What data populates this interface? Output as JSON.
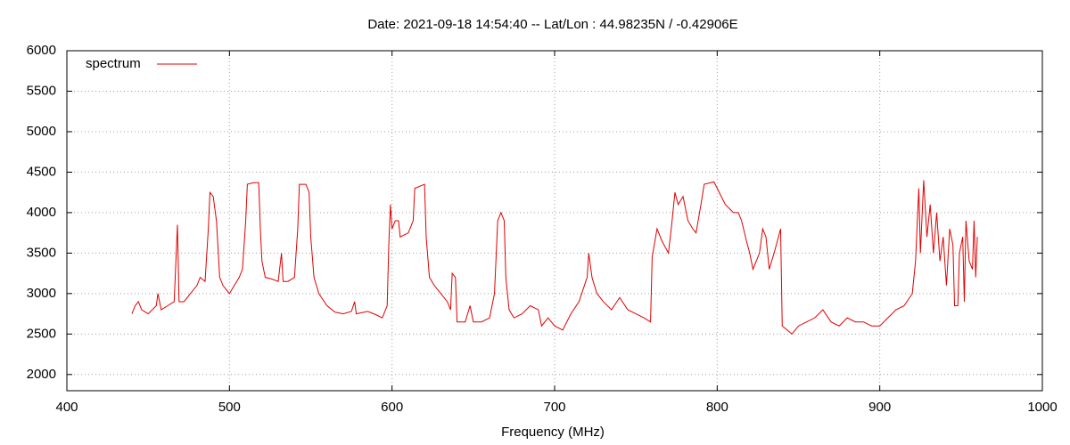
{
  "chart_data": {
    "type": "line",
    "title": "Date: 2021-09-18 14:54:40  --  Lat/Lon : 44.98235N / -0.42906E",
    "x_label": "Frequency (MHz)",
    "xlim": [
      400,
      1000
    ],
    "xticks": [
      400,
      500,
      600,
      700,
      800,
      900,
      1000
    ],
    "ylim": [
      1800,
      6000
    ],
    "yticks": [
      2000,
      2500,
      3000,
      3500,
      4000,
      4500,
      5000,
      5500,
      6000
    ],
    "grid": true,
    "legend": "upper-left",
    "x": [
      440,
      442,
      444,
      446,
      450,
      455,
      456,
      458,
      462,
      466,
      468,
      469,
      472,
      476,
      480,
      482,
      485,
      487,
      488,
      490,
      492,
      494,
      496,
      498,
      500,
      503,
      506,
      508,
      510,
      511,
      515,
      518,
      519,
      520,
      522,
      526,
      530,
      532,
      533,
      536,
      540,
      542,
      543,
      547,
      549,
      550,
      552,
      555,
      560,
      565,
      570,
      575,
      577,
      578,
      585,
      590,
      594,
      597,
      598,
      599,
      600,
      602,
      604,
      605,
      610,
      613,
      614,
      620,
      621,
      623,
      626,
      630,
      634,
      636,
      637,
      639,
      640,
      645,
      648,
      650,
      655,
      660,
      663,
      665,
      667,
      669,
      670,
      672,
      675,
      680,
      685,
      690,
      692,
      696,
      700,
      705,
      710,
      715,
      720,
      721,
      723,
      726,
      730,
      735,
      740,
      745,
      750,
      755,
      759,
      760,
      763,
      766,
      770,
      772,
      774,
      776,
      779,
      782,
      785,
      787,
      790,
      792,
      798,
      800,
      805,
      810,
      813,
      815,
      818,
      820,
      822,
      826,
      828,
      830,
      832,
      835,
      839,
      840,
      843,
      846,
      850,
      855,
      860,
      865,
      870,
      875,
      880,
      885,
      890,
      895,
      900,
      905,
      910,
      915,
      920,
      922,
      924,
      925,
      927,
      929,
      931,
      933,
      935,
      937,
      939,
      941,
      943,
      945,
      946,
      948,
      949,
      951,
      952,
      953,
      955,
      957,
      958,
      959,
      960
    ],
    "series": [
      {
        "name": "spectrum",
        "color": "#e00000",
        "values": [
          2750,
          2850,
          2900,
          2800,
          2750,
          2850,
          3000,
          2800,
          2850,
          2900,
          3850,
          2900,
          2900,
          3000,
          3100,
          3200,
          3150,
          3800,
          4250,
          4200,
          3900,
          3200,
          3100,
          3050,
          3000,
          3100,
          3200,
          3300,
          3900,
          4350,
          4370,
          4370,
          3800,
          3400,
          3200,
          3180,
          3150,
          3500,
          3150,
          3150,
          3200,
          3800,
          4350,
          4350,
          4250,
          3700,
          3200,
          3000,
          2850,
          2770,
          2750,
          2780,
          2900,
          2750,
          2780,
          2740,
          2700,
          2850,
          3600,
          4100,
          3800,
          3900,
          3900,
          3700,
          3750,
          3900,
          4300,
          4350,
          3700,
          3200,
          3100,
          3000,
          2900,
          2800,
          3250,
          3200,
          2650,
          2650,
          2850,
          2650,
          2650,
          2700,
          3000,
          3900,
          4000,
          3900,
          3200,
          2800,
          2700,
          2750,
          2850,
          2800,
          2600,
          2700,
          2600,
          2550,
          2750,
          2900,
          3200,
          3500,
          3200,
          3000,
          2900,
          2800,
          2950,
          2800,
          2750,
          2700,
          2650,
          3450,
          3800,
          3650,
          3500,
          3850,
          4250,
          4100,
          4200,
          3900,
          3800,
          3750,
          4100,
          4350,
          4380,
          4300,
          4100,
          4000,
          4000,
          3900,
          3650,
          3500,
          3300,
          3500,
          3800,
          3700,
          3300,
          3500,
          3800,
          2600,
          2550,
          2500,
          2600,
          2650,
          2700,
          2800,
          2650,
          2600,
          2700,
          2650,
          2650,
          2600,
          2600,
          2700,
          2800,
          2850,
          3000,
          3400,
          4300,
          3500,
          4400,
          3700,
          4100,
          3500,
          4000,
          3400,
          3700,
          3100,
          3800,
          3600,
          2850,
          2850,
          3500,
          3700,
          2900,
          3900,
          3400,
          3300,
          3900,
          3200,
          3700
        ]
      }
    ]
  }
}
